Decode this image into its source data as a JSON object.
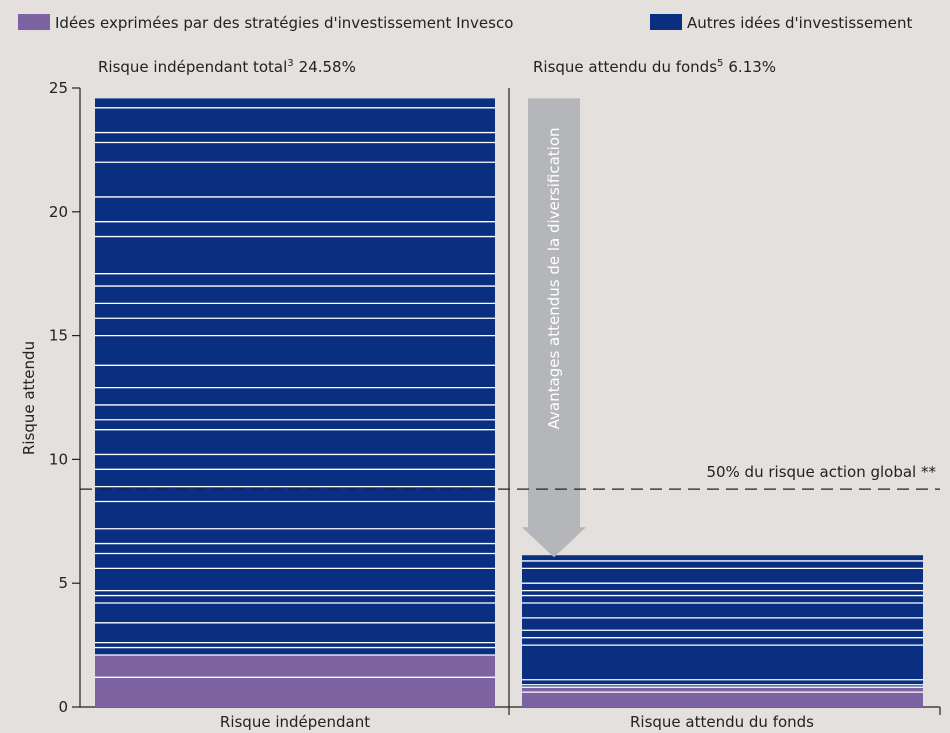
{
  "chart_data": {
    "type": "bar",
    "legend": [
      {
        "name": "Idées exprimées par des stratégies d'investissement Invesco",
        "color": "#7e63a3"
      },
      {
        "name": "Autres idées d'investissement",
        "color": "#0b2f80"
      }
    ],
    "legend_position": "top",
    "ylabel": "Risque attendu",
    "ylim": [
      0,
      25
    ],
    "yticks": [
      0,
      5,
      10,
      15,
      20,
      25
    ],
    "categories": [
      "Risque indépendant",
      "Risque attendu du fonds"
    ],
    "bar_titles": [
      {
        "prefix": "Risque indépendant total",
        "sup": "3",
        "value": "24.58%"
      },
      {
        "prefix": "Risque attendu du fonds",
        "sup": "5",
        "value": "6.13%"
      }
    ],
    "totals": [
      24.58,
      6.13
    ],
    "purple_tops": [
      [
        1.2,
        2.1
      ],
      [
        0.6,
        0.8
      ]
    ],
    "segment_boundaries": [
      [
        1.2,
        2.1,
        2.4,
        2.6,
        3.4,
        4.2,
        4.5,
        4.7,
        5.6,
        6.2,
        6.6,
        7.2,
        8.3,
        8.9,
        9.6,
        10.2,
        11.2,
        11.6,
        12.2,
        12.9,
        13.8,
        15.0,
        15.7,
        16.3,
        17.0,
        17.5,
        19.0,
        19.6,
        20.6,
        22.0,
        22.8,
        23.2,
        24.2
      ],
      [
        0.6,
        0.8,
        0.9,
        1.1,
        2.5,
        2.8,
        3.1,
        3.6,
        4.2,
        4.5,
        4.7,
        5.0,
        5.6,
        5.9
      ]
    ],
    "reference_line": {
      "value": 8.8,
      "label": "50% du risque action global **"
    },
    "arrow": {
      "label": "Avantages attendus de la diversification",
      "from": 24.58,
      "to": 6.13
    },
    "grid": false
  }
}
